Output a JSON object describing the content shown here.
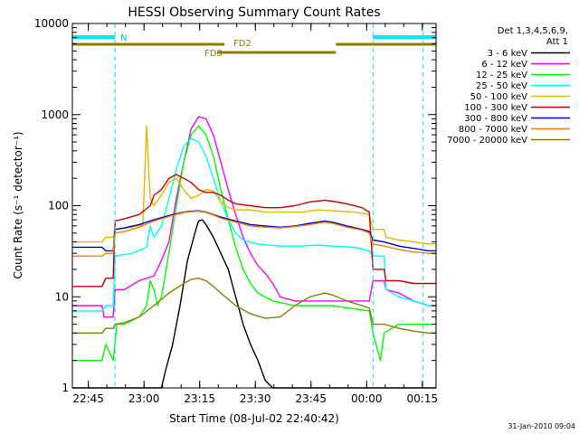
{
  "chart_data": {
    "type": "line",
    "title": "HESSI Observing Summary Count Rates",
    "xlabel": "Start Time (08-Jul-02 22:40:42)",
    "ylabel": "Count Rate (s⁻¹ detector⁻¹)",
    "x_unit": "minutes after 22:40:42",
    "xlim": [
      0,
      98
    ],
    "ylim": [
      1,
      10000
    ],
    "y_scale": "log",
    "x_ticks": [
      {
        "x": 4.3,
        "label": "22:45"
      },
      {
        "x": 19.3,
        "label": "23:00"
      },
      {
        "x": 34.3,
        "label": "23:15"
      },
      {
        "x": 49.3,
        "label": "23:30"
      },
      {
        "x": 64.3,
        "label": "23:45"
      },
      {
        "x": 79.3,
        "label": "00:00"
      },
      {
        "x": 94.3,
        "label": "00:15"
      }
    ],
    "y_ticks": [
      {
        "y": 1,
        "label": "1"
      },
      {
        "y": 10,
        "label": "10"
      },
      {
        "y": 100,
        "label": "100"
      },
      {
        "y": 1000,
        "label": "1000"
      },
      {
        "y": 10000,
        "label": "10000"
      }
    ],
    "legend_header": [
      "Det 1,3,4,5,6,9,",
      "Att 1"
    ],
    "legend_position": "right",
    "series": [
      {
        "name": "3 - 6 keV",
        "color": "#000000",
        "points": [
          [
            0,
            1
          ],
          [
            24,
            1
          ],
          [
            25,
            1.5
          ],
          [
            27,
            3
          ],
          [
            29,
            8
          ],
          [
            31,
            25
          ],
          [
            33,
            50
          ],
          [
            34,
            68
          ],
          [
            35,
            70
          ],
          [
            36,
            62
          ],
          [
            38,
            45
          ],
          [
            40,
            30
          ],
          [
            42,
            20
          ],
          [
            44,
            10
          ],
          [
            46,
            5
          ],
          [
            48,
            3
          ],
          [
            50,
            2
          ],
          [
            52,
            1.2
          ],
          [
            54,
            1
          ],
          [
            98,
            1
          ]
        ]
      },
      {
        "name": "6 - 12 keV",
        "color": "#ff00ff",
        "points": [
          [
            0,
            8
          ],
          [
            8,
            8
          ],
          [
            8.5,
            6
          ],
          [
            11,
            6
          ],
          [
            11.5,
            12
          ],
          [
            14,
            12
          ],
          [
            18,
            15
          ],
          [
            22,
            17
          ],
          [
            24,
            25
          ],
          [
            26,
            40
          ],
          [
            28,
            120
          ],
          [
            30,
            300
          ],
          [
            32,
            700
          ],
          [
            34,
            950
          ],
          [
            36,
            900
          ],
          [
            38,
            600
          ],
          [
            40,
            300
          ],
          [
            42,
            150
          ],
          [
            44,
            80
          ],
          [
            46,
            45
          ],
          [
            48,
            30
          ],
          [
            50,
            22
          ],
          [
            52,
            18
          ],
          [
            54,
            14
          ],
          [
            56,
            10
          ],
          [
            60,
            9
          ],
          [
            70,
            9
          ],
          [
            80,
            9
          ],
          [
            81,
            15
          ],
          [
            84,
            15
          ],
          [
            84.5,
            12
          ],
          [
            88,
            11
          ],
          [
            92,
            9
          ],
          [
            96,
            8
          ],
          [
            98,
            8
          ]
        ]
      },
      {
        "name": "12 - 25 keV",
        "color": "#00ff00",
        "points": [
          [
            0,
            2
          ],
          [
            8,
            2
          ],
          [
            9,
            3
          ],
          [
            11,
            2
          ],
          [
            12,
            5
          ],
          [
            14,
            5
          ],
          [
            18,
            6
          ],
          [
            20,
            8
          ],
          [
            21,
            15
          ],
          [
            22,
            12
          ],
          [
            23,
            8
          ],
          [
            24,
            10
          ],
          [
            26,
            30
          ],
          [
            28,
            100
          ],
          [
            30,
            300
          ],
          [
            32,
            600
          ],
          [
            34,
            750
          ],
          [
            36,
            600
          ],
          [
            38,
            350
          ],
          [
            40,
            150
          ],
          [
            42,
            70
          ],
          [
            44,
            35
          ],
          [
            46,
            20
          ],
          [
            48,
            14
          ],
          [
            50,
            11
          ],
          [
            54,
            9
          ],
          [
            60,
            8
          ],
          [
            70,
            8
          ],
          [
            80,
            7
          ],
          [
            81,
            4
          ],
          [
            83,
            2
          ],
          [
            84,
            4
          ],
          [
            88,
            5
          ],
          [
            92,
            5
          ],
          [
            96,
            5
          ],
          [
            98,
            5
          ]
        ]
      },
      {
        "name": "25 - 50 keV",
        "color": "#00ffff",
        "points": [
          [
            0,
            7
          ],
          [
            8,
            7
          ],
          [
            9,
            8
          ],
          [
            11,
            8
          ],
          [
            11.5,
            28
          ],
          [
            16,
            30
          ],
          [
            20,
            35
          ],
          [
            21,
            60
          ],
          [
            22,
            45
          ],
          [
            24,
            60
          ],
          [
            26,
            120
          ],
          [
            28,
            250
          ],
          [
            30,
            450
          ],
          [
            32,
            550
          ],
          [
            34,
            500
          ],
          [
            36,
            350
          ],
          [
            38,
            200
          ],
          [
            40,
            110
          ],
          [
            42,
            70
          ],
          [
            44,
            50
          ],
          [
            46,
            42
          ],
          [
            50,
            38
          ],
          [
            56,
            36
          ],
          [
            62,
            36
          ],
          [
            66,
            37
          ],
          [
            70,
            36
          ],
          [
            76,
            35
          ],
          [
            80,
            32
          ],
          [
            81,
            28
          ],
          [
            84,
            28
          ],
          [
            84.5,
            12
          ],
          [
            88,
            10
          ],
          [
            92,
            9
          ],
          [
            96,
            8
          ],
          [
            98,
            8
          ]
        ]
      },
      {
        "name": "50 - 100 keV",
        "color": "#e6b800",
        "points": [
          [
            0,
            40
          ],
          [
            8,
            40
          ],
          [
            9,
            45
          ],
          [
            11,
            45
          ],
          [
            11.5,
            55
          ],
          [
            16,
            58
          ],
          [
            19,
            62
          ],
          [
            20,
            750
          ],
          [
            21,
            120
          ],
          [
            22,
            100
          ],
          [
            24,
            130
          ],
          [
            26,
            180
          ],
          [
            28,
            200
          ],
          [
            30,
            150
          ],
          [
            32,
            120
          ],
          [
            34,
            130
          ],
          [
            36,
            150
          ],
          [
            38,
            145
          ],
          [
            40,
            110
          ],
          [
            42,
            95
          ],
          [
            44,
            90
          ],
          [
            48,
            90
          ],
          [
            52,
            85
          ],
          [
            58,
            85
          ],
          [
            62,
            85
          ],
          [
            66,
            90
          ],
          [
            70,
            88
          ],
          [
            76,
            85
          ],
          [
            80,
            80
          ],
          [
            81,
            55
          ],
          [
            84,
            55
          ],
          [
            84.5,
            45
          ],
          [
            88,
            42
          ],
          [
            92,
            40
          ],
          [
            96,
            38
          ],
          [
            98,
            38
          ]
        ]
      },
      {
        "name": "100 - 300 keV",
        "color": "#cc0000",
        "points": [
          [
            0,
            13
          ],
          [
            8,
            13
          ],
          [
            9,
            16
          ],
          [
            11,
            16
          ],
          [
            11.5,
            68
          ],
          [
            14,
            72
          ],
          [
            18,
            80
          ],
          [
            21,
            100
          ],
          [
            22,
            130
          ],
          [
            24,
            150
          ],
          [
            26,
            200
          ],
          [
            28,
            220
          ],
          [
            30,
            200
          ],
          [
            32,
            180
          ],
          [
            34,
            150
          ],
          [
            36,
            140
          ],
          [
            38,
            140
          ],
          [
            40,
            130
          ],
          [
            42,
            115
          ],
          [
            44,
            105
          ],
          [
            48,
            100
          ],
          [
            52,
            95
          ],
          [
            56,
            95
          ],
          [
            60,
            100
          ],
          [
            64,
            110
          ],
          [
            68,
            115
          ],
          [
            70,
            112
          ],
          [
            74,
            105
          ],
          [
            78,
            95
          ],
          [
            80,
            85
          ],
          [
            81,
            20
          ],
          [
            84,
            20
          ],
          [
            84.5,
            15
          ],
          [
            88,
            15
          ],
          [
            92,
            14
          ],
          [
            96,
            14
          ],
          [
            98,
            14
          ]
        ]
      },
      {
        "name": "300 - 800 keV",
        "color": "#0000cc",
        "points": [
          [
            0,
            35
          ],
          [
            8,
            35
          ],
          [
            9,
            32
          ],
          [
            11,
            32
          ],
          [
            11.5,
            55
          ],
          [
            14,
            57
          ],
          [
            18,
            62
          ],
          [
            22,
            70
          ],
          [
            26,
            78
          ],
          [
            30,
            85
          ],
          [
            32,
            87
          ],
          [
            34,
            88
          ],
          [
            36,
            85
          ],
          [
            38,
            80
          ],
          [
            40,
            75
          ],
          [
            44,
            68
          ],
          [
            48,
            62
          ],
          [
            52,
            60
          ],
          [
            56,
            58
          ],
          [
            60,
            60
          ],
          [
            64,
            64
          ],
          [
            68,
            68
          ],
          [
            70,
            66
          ],
          [
            74,
            60
          ],
          [
            78,
            55
          ],
          [
            80,
            52
          ],
          [
            81,
            42
          ],
          [
            84,
            40
          ],
          [
            88,
            36
          ],
          [
            92,
            34
          ],
          [
            96,
            32
          ],
          [
            98,
            32
          ]
        ]
      },
      {
        "name": "800 - 7000 keV",
        "color": "#ff8000",
        "points": [
          [
            0,
            28
          ],
          [
            8,
            28
          ],
          [
            9,
            30
          ],
          [
            11,
            30
          ],
          [
            11.5,
            50
          ],
          [
            14,
            52
          ],
          [
            18,
            58
          ],
          [
            22,
            68
          ],
          [
            26,
            76
          ],
          [
            30,
            84
          ],
          [
            32,
            86
          ],
          [
            34,
            87
          ],
          [
            36,
            84
          ],
          [
            38,
            79
          ],
          [
            40,
            73
          ],
          [
            44,
            66
          ],
          [
            48,
            60
          ],
          [
            52,
            58
          ],
          [
            56,
            57
          ],
          [
            60,
            59
          ],
          [
            64,
            62
          ],
          [
            68,
            66
          ],
          [
            70,
            64
          ],
          [
            74,
            58
          ],
          [
            78,
            54
          ],
          [
            80,
            50
          ],
          [
            81,
            38
          ],
          [
            84,
            36
          ],
          [
            88,
            33
          ],
          [
            92,
            31
          ],
          [
            96,
            30
          ],
          [
            98,
            30
          ]
        ]
      },
      {
        "name": "7000 - 20000 keV",
        "color": "#8b7d00",
        "points": [
          [
            0,
            4
          ],
          [
            8,
            4
          ],
          [
            9,
            4.5
          ],
          [
            11,
            4.5
          ],
          [
            11.5,
            5
          ],
          [
            14,
            5.2
          ],
          [
            18,
            6
          ],
          [
            22,
            8
          ],
          [
            26,
            11
          ],
          [
            30,
            14
          ],
          [
            32,
            15.5
          ],
          [
            34,
            16
          ],
          [
            36,
            15
          ],
          [
            38,
            13
          ],
          [
            40,
            11
          ],
          [
            44,
            8
          ],
          [
            48,
            6.5
          ],
          [
            52,
            5.8
          ],
          [
            56,
            6
          ],
          [
            60,
            8
          ],
          [
            64,
            10
          ],
          [
            68,
            11
          ],
          [
            70,
            10.5
          ],
          [
            74,
            9
          ],
          [
            78,
            8
          ],
          [
            80,
            7.5
          ],
          [
            81,
            5
          ],
          [
            84,
            5
          ],
          [
            88,
            4.5
          ],
          [
            92,
            4.2
          ],
          [
            96,
            4
          ],
          [
            98,
            4
          ]
        ]
      }
    ],
    "annotations": {
      "night_marker_label": "N",
      "night_segments": [
        [
          0,
          11.5
        ],
        [
          81,
          98
        ]
      ],
      "fd2_label": "FD2",
      "fd2_segments": [
        [
          0,
          41
        ],
        [
          71,
          98
        ]
      ],
      "fd3_label": "FD3",
      "fd3_segments": [
        [
          39,
          71
        ]
      ],
      "vertical_markers": [
        0,
        11.5,
        81,
        94.5
      ]
    }
  },
  "footer": {
    "date_stamp": "31-Jan-2010 09:04"
  }
}
